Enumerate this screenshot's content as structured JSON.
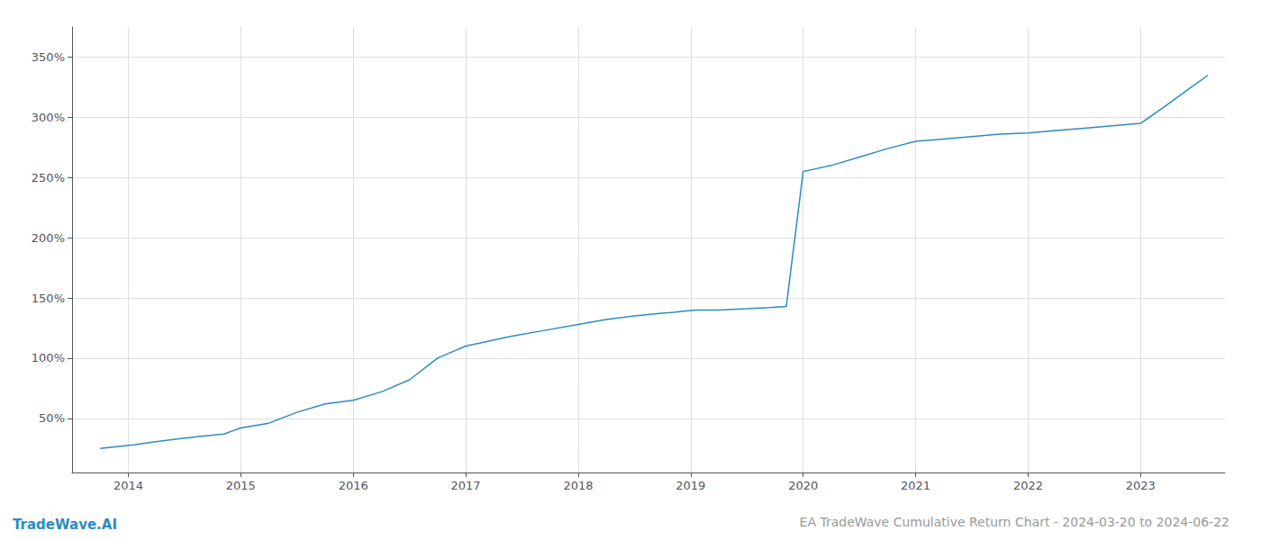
{
  "chart_data": {
    "type": "line",
    "title": "EA TradeWave Cumulative Return Chart - 2024-03-20 to 2024-06-22",
    "annotations": [
      "TradeWave.AI"
    ],
    "x": [
      2013.75,
      2014.05,
      2014.2,
      2014.45,
      2014.65,
      2014.85,
      2015.0,
      2015.25,
      2015.5,
      2015.75,
      2016.0,
      2016.25,
      2016.5,
      2016.75,
      2017.0,
      2017.15,
      2017.4,
      2017.7,
      2018.0,
      2018.25,
      2018.5,
      2018.7,
      2018.85,
      2019.05,
      2019.25,
      2019.5,
      2019.7,
      2019.85,
      2020.0,
      2020.1,
      2020.25,
      2020.5,
      2020.75,
      2021.0,
      2021.25,
      2021.5,
      2021.75,
      2022.0,
      2022.25,
      2022.5,
      2022.75,
      2023.0,
      2023.2,
      2023.45,
      2023.6
    ],
    "values": [
      25,
      28,
      30,
      33,
      35,
      37,
      42,
      46,
      55,
      62,
      65,
      72,
      82,
      100,
      110,
      113,
      118,
      123,
      128,
      132,
      135,
      137,
      138,
      140,
      140,
      141,
      142,
      143,
      255,
      257,
      260,
      267,
      274,
      280,
      282,
      284,
      286,
      287,
      289,
      291,
      293,
      295,
      308,
      325,
      335
    ],
    "color": "#2e8bc0",
    "xlim": [
      2013.5,
      2023.75
    ],
    "xticks": [
      2014,
      2015,
      2016,
      2017,
      2018,
      2019,
      2020,
      2021,
      2022,
      2023
    ],
    "ylim": [
      5,
      375
    ],
    "yticks": [
      {
        "value": 50,
        "label": "50%"
      },
      {
        "value": 100,
        "label": "100%"
      },
      {
        "value": 150,
        "label": "150%"
      },
      {
        "value": 200,
        "label": "200%"
      },
      {
        "value": 250,
        "label": "250%"
      },
      {
        "value": 300,
        "label": "300%"
      },
      {
        "value": 350,
        "label": "350%"
      }
    ],
    "grid": true
  }
}
